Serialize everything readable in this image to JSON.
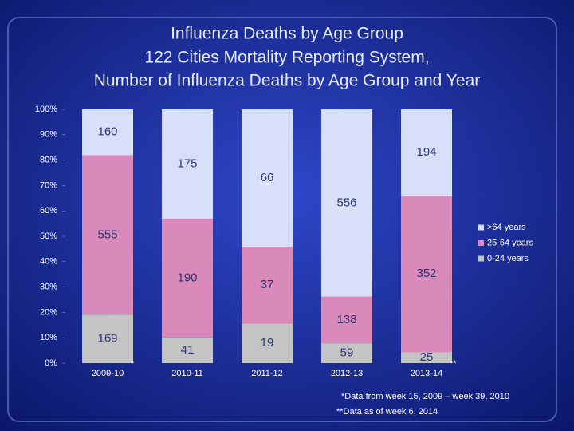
{
  "chart_data": {
    "type": "bar",
    "stacking": "percent",
    "title_lines": [
      "Influenza Deaths by Age Group",
      "122 Cities Mortality Reporting System,",
      "Number of Influenza Deaths by  Age Group and Year"
    ],
    "categories": [
      "2009-10",
      "2010-11",
      "2011-12",
      "2012-13",
      "2013-14"
    ],
    "footnote_marks": [
      "*",
      null,
      null,
      null,
      "**"
    ],
    "series": [
      {
        "name": "0-24 years",
        "color": "#c4c4c4",
        "values": [
          169,
          41,
          19,
          59,
          25
        ]
      },
      {
        "name": "25-64 years",
        "color": "#da89bb",
        "values": [
          555,
          190,
          37,
          138,
          352
        ]
      },
      {
        "name": ">64 years",
        "color": "#d7e0f8",
        "values": [
          160,
          175,
          66,
          556,
          194
        ]
      }
    ],
    "ylim": [
      0,
      100
    ],
    "yticks": [
      {
        "value": 0,
        "label": "0%"
      },
      {
        "value": 10,
        "label": "10%"
      },
      {
        "value": 20,
        "label": "20%"
      },
      {
        "value": 30,
        "label": "30%"
      },
      {
        "value": 40,
        "label": "40%"
      },
      {
        "value": 50,
        "label": "50%"
      },
      {
        "value": 60,
        "label": "60%"
      },
      {
        "value": 70,
        "label": "70%"
      },
      {
        "value": 80,
        "label": "80%"
      },
      {
        "value": 90,
        "label": "90%"
      },
      {
        "value": 100,
        "label": "100%"
      }
    ],
    "legend_position": "right",
    "footnotes": [
      "*Data from week 15, 2009 – week 39, 2010",
      "**Data as of week 6, 2014"
    ]
  }
}
